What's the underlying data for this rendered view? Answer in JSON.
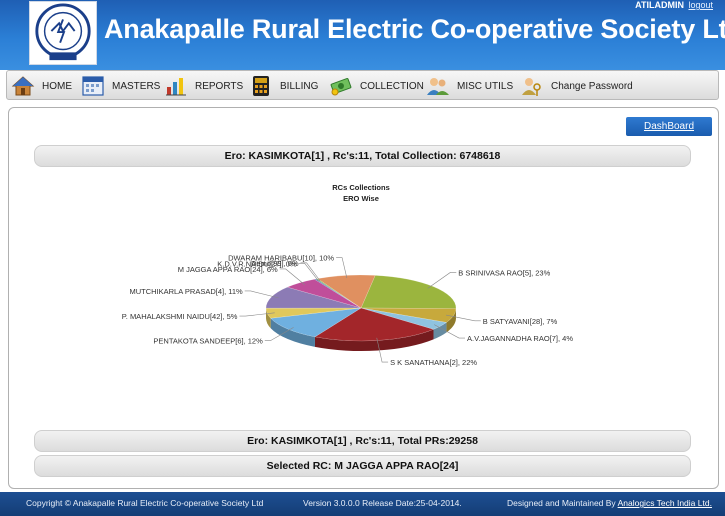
{
  "header": {
    "title": "Anakapalle Rural Electric Co-operative Society Ltd",
    "username": "ATILADMIN",
    "logout_label": "logout"
  },
  "menu": {
    "items": [
      {
        "label": "HOME",
        "icon": "home-icon"
      },
      {
        "label": "MASTERS",
        "icon": "calendar-icon"
      },
      {
        "label": "REPORTS",
        "icon": "reports-icon"
      },
      {
        "label": "BILLING",
        "icon": "calculator-icon"
      },
      {
        "label": "COLLECTION",
        "icon": "money-icon"
      },
      {
        "label": "MISC UTILS",
        "icon": "users-icon"
      },
      {
        "label": "Change Password",
        "icon": "user-key-icon"
      }
    ]
  },
  "content": {
    "dashboard_label": "DashBoard",
    "summary_collection": "Ero: KASIMKOTA[1] , Rc's:11, Total Collection: 6748618",
    "summary_prs": "Ero: KASIMKOTA[1] , Rc's:11, Total PRs:29258",
    "selected_rc": "Selected RC: M JAGGA APPA RAO[24]"
  },
  "chart_data": {
    "type": "pie",
    "title": "RCs Collections",
    "subtitle": "ERO Wise",
    "slices": [
      {
        "label": "B SRINIVASA RAO[5], 23%",
        "value": 23,
        "color": "#9bb53e"
      },
      {
        "label": "B SATYAVANI[28], 7%",
        "value": 7,
        "color": "#c7a93c"
      },
      {
        "label": "A.V.JAGANNADHA RAO[7], 4%",
        "value": 4,
        "color": "#8fc3e0"
      },
      {
        "label": "S K SANATHANA[2], 22%",
        "value": 22,
        "color": "#a3262a"
      },
      {
        "label": "PENTAKOTA SANDEEP[6], 12%",
        "value": 12,
        "color": "#6fb0e0"
      },
      {
        "label": "P. MAHALAKSHMI NAIDU[42], 5%",
        "value": 5,
        "color": "#e0c85c"
      },
      {
        "label": "MUTCHIKARLA PRASAD[4], 11%",
        "value": 11,
        "color": "#8c7bb5"
      },
      {
        "label": "M JAGGA APPA RAO[24], 6%",
        "value": 6,
        "color": "#c04e9a"
      },
      {
        "label": "K.D.V.R.NAIDU[27], 0%",
        "value": 0.3,
        "color": "#5c7fbf"
      },
      {
        "label": "Demo[99], 0%",
        "value": 0.3,
        "color": "#7fbf5c"
      },
      {
        "label": "DWARAM HARIBABU[10], 10%",
        "value": 10,
        "color": "#e09060"
      }
    ]
  },
  "footer": {
    "copyright": "Copyright © Anakapalle Rural Electric Co-operative Society Ltd",
    "version": "Version 3.0.0.0 Release Date:25-04-2014.",
    "maintained_prefix": "Designed and Maintained By",
    "maintained_link": "Analogics Tech India Ltd."
  }
}
